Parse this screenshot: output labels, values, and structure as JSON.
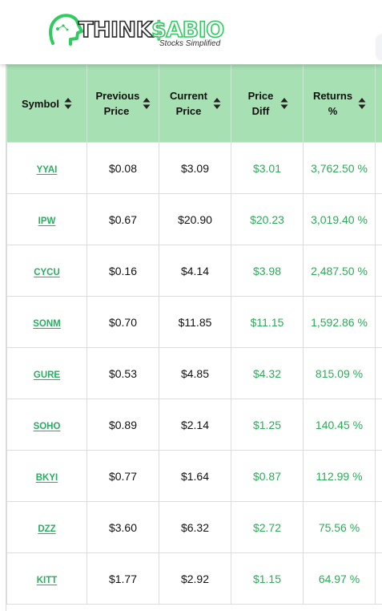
{
  "brand": {
    "name_part1": "THINK",
    "name_part2": "$ABIO",
    "tagline": "Stocks Simplified",
    "colors": {
      "green": "#2ecc5f",
      "dark": "#2a2a2a"
    }
  },
  "table": {
    "header_bg": "#a6e0b3",
    "columns": [
      {
        "label": "Symbol",
        "icon": "sort-icon"
      },
      {
        "label": "Previous Price",
        "icon": "sort-icon"
      },
      {
        "label": "Current Price",
        "icon": "sort-icon"
      },
      {
        "label": "Price Diff",
        "icon": "sort-icon"
      },
      {
        "label": "Returns %",
        "icon": "sort-icon"
      }
    ],
    "rows": [
      {
        "symbol": "YYAI",
        "previous": "$0.08",
        "current": "$3.09",
        "diff": "$3.01",
        "returns": "3,762.50 %"
      },
      {
        "symbol": "IPW",
        "previous": "$0.67",
        "current": "$20.90",
        "diff": "$20.23",
        "returns": "3,019.40 %"
      },
      {
        "symbol": "CYCU",
        "previous": "$0.16",
        "current": "$4.14",
        "diff": "$3.98",
        "returns": "2,487.50 %"
      },
      {
        "symbol": "SONM",
        "previous": "$0.70",
        "current": "$11.85",
        "diff": "$11.15",
        "returns": "1,592.86 %"
      },
      {
        "symbol": "GURE",
        "previous": "$0.53",
        "current": "$4.85",
        "diff": "$4.32",
        "returns": "815.09 %"
      },
      {
        "symbol": "SOHO",
        "previous": "$0.89",
        "current": "$2.14",
        "diff": "$1.25",
        "returns": "140.45 %"
      },
      {
        "symbol": "BKYI",
        "previous": "$0.77",
        "current": "$1.64",
        "diff": "$0.87",
        "returns": "112.99 %"
      },
      {
        "symbol": "DZZ",
        "previous": "$3.60",
        "current": "$6.32",
        "diff": "$2.72",
        "returns": "75.56 %"
      },
      {
        "symbol": "KITT",
        "previous": "$1.77",
        "current": "$2.92",
        "diff": "$1.15",
        "returns": "64.97 %"
      }
    ]
  }
}
